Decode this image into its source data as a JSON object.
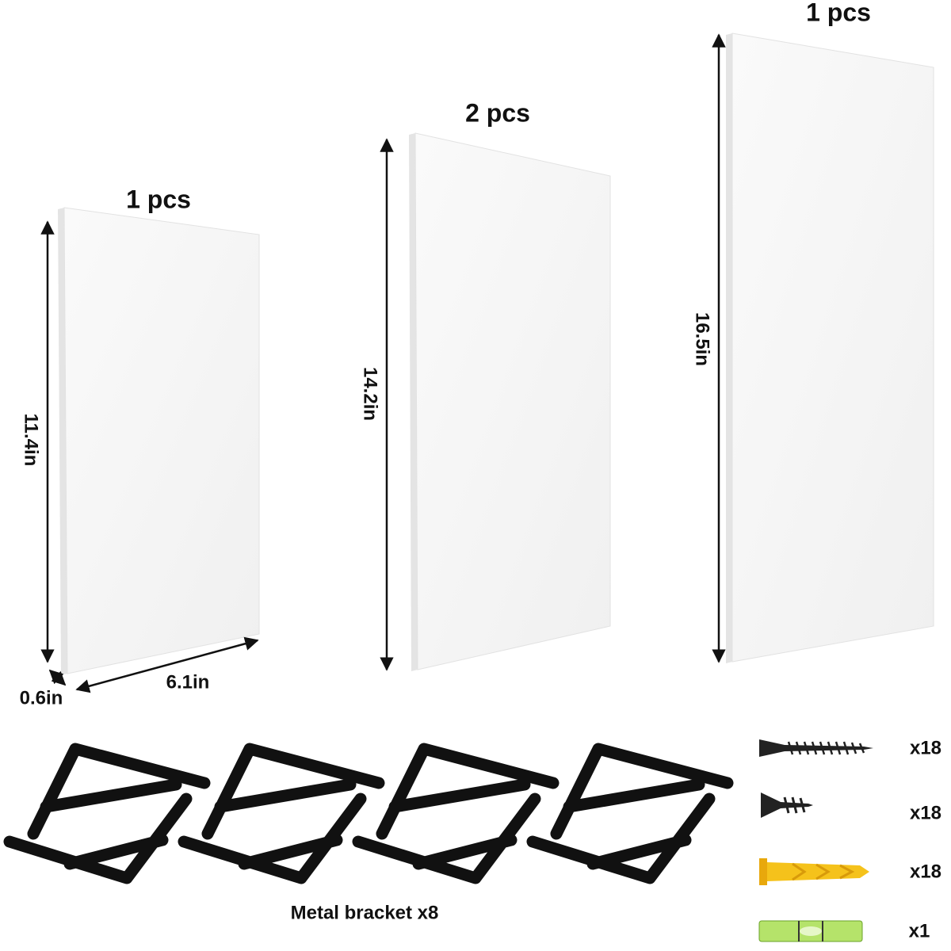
{
  "shelves": [
    {
      "quantity": "1 pcs",
      "height": "11.4in"
    },
    {
      "quantity": "2 pcs",
      "height": "14.2in"
    },
    {
      "quantity": "1 pcs",
      "height": "16.5in"
    }
  ],
  "dimensions": {
    "depth": "0.6in",
    "width": "6.1in"
  },
  "brackets": {
    "label": "Metal bracket x8"
  },
  "hardware": [
    {
      "quantity": "x18"
    },
    {
      "quantity": "x18"
    },
    {
      "quantity": "x18"
    },
    {
      "quantity": "x1"
    }
  ]
}
